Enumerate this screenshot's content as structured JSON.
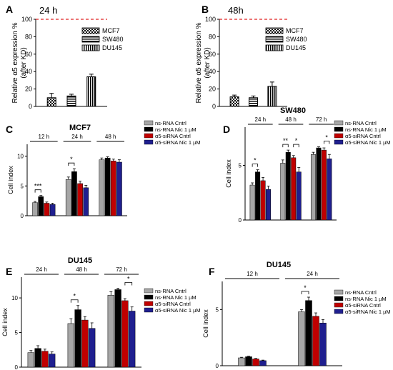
{
  "patterns": {
    "MCF7": "checker",
    "SW480": "hstripe",
    "DU145": "vstripe"
  },
  "colors": {
    "grey": "#a6a6a6",
    "black": "#000000",
    "red": "#c00000",
    "blue": "#1f1f8f",
    "ref_line": "#e02020"
  },
  "chart_data": [
    {
      "panel": "A",
      "type": "bar",
      "title": "24 h",
      "ylabel": "Relative α5 expression %\n(after KD)",
      "ylim": [
        0,
        100
      ],
      "yticks": [
        0,
        20,
        40,
        60,
        80,
        100
      ],
      "reference_line": 100,
      "categories": [
        "MCF7",
        "SW480",
        "DU145"
      ],
      "values": [
        10,
        12,
        34
      ],
      "errors": [
        5,
        2,
        3
      ],
      "legend": [
        "MCF7",
        "SW480",
        "DU145"
      ]
    },
    {
      "panel": "B",
      "type": "bar",
      "title": "48h",
      "ylabel": "Relative α5 expression %\n(after KD)",
      "ylim": [
        0,
        100
      ],
      "yticks": [
        0,
        20,
        40,
        60,
        80,
        100
      ],
      "reference_line": 100,
      "categories": [
        "MCF7",
        "SW480",
        "DU145"
      ],
      "values": [
        11,
        10,
        23
      ],
      "errors": [
        2,
        2,
        5
      ],
      "legend": [
        "MCF7",
        "SW480",
        "DU145"
      ]
    },
    {
      "panel": "C",
      "type": "bar",
      "title": "MCF7",
      "ylabel": "Cell index",
      "ylim": [
        0,
        12
      ],
      "yticks": [
        0,
        5,
        10
      ],
      "groups": [
        "12 h",
        "24 h",
        "48 h"
      ],
      "series": [
        {
          "name": "ns-RNA Cntrl",
          "values": [
            2.2,
            6.1,
            9.4
          ],
          "errors": [
            0.2,
            0.4,
            0.3
          ]
        },
        {
          "name": "ns-RNA Nic 1 µM",
          "values": [
            3.2,
            7.4,
            9.7
          ],
          "errors": [
            0.2,
            0.5,
            0.2
          ]
        },
        {
          "name": "α5-siRNA Cntrl",
          "values": [
            2.1,
            5.4,
            9.2
          ],
          "errors": [
            0.2,
            0.4,
            0.3
          ]
        },
        {
          "name": "α5-siRNA Nic 1 µM",
          "values": [
            1.9,
            4.7,
            9.0
          ],
          "errors": [
            0.2,
            0.4,
            0.4
          ]
        }
      ],
      "significance": [
        {
          "group": 0,
          "from": 0,
          "to": 1,
          "label": "***"
        },
        {
          "group": 1,
          "from": 0,
          "to": 1,
          "label": "*"
        }
      ]
    },
    {
      "panel": "D",
      "type": "bar",
      "title": "SW480",
      "ylabel": "Cell index",
      "ylim": [
        0,
        8.5
      ],
      "yticks": [
        0,
        5
      ],
      "groups": [
        "24 h",
        "48 h",
        "72 h"
      ],
      "series": [
        {
          "name": "ns-RNA Cntrl",
          "values": [
            3.2,
            5.2,
            6.0
          ],
          "errors": [
            0.2,
            0.3,
            0.2
          ]
        },
        {
          "name": "ns-RNA Nic 1 µM",
          "values": [
            4.4,
            6.2,
            6.6
          ],
          "errors": [
            0.2,
            0.2,
            0.1
          ]
        },
        {
          "name": "α5-siRNA Cntrl",
          "values": [
            3.6,
            5.7,
            6.4
          ],
          "errors": [
            0.3,
            0.2,
            0.2
          ]
        },
        {
          "name": "α5-siRNA Nic 1 µM",
          "values": [
            2.8,
            4.4,
            5.6
          ],
          "errors": [
            0.3,
            0.4,
            0.4
          ]
        }
      ],
      "significance": [
        {
          "group": 0,
          "from": 0,
          "to": 1,
          "label": "*"
        },
        {
          "group": 1,
          "from": 0,
          "to": 1,
          "label": "**"
        },
        {
          "group": 1,
          "from": 2,
          "to": 3,
          "label": "*"
        },
        {
          "group": 2,
          "from": 2,
          "to": 3,
          "label": "*"
        }
      ]
    },
    {
      "panel": "E",
      "type": "bar",
      "title": "DU145",
      "ylabel": "Cell index",
      "ylim": [
        0,
        13
      ],
      "yticks": [
        0,
        5,
        10
      ],
      "groups": [
        "24 h",
        "48 h",
        "72 h"
      ],
      "series": [
        {
          "name": "ns-RNA Cntrl",
          "values": [
            2.1,
            6.3,
            10.4
          ],
          "errors": [
            0.3,
            0.7,
            0.5
          ]
        },
        {
          "name": "ns-RNA Nic 1 µM",
          "values": [
            2.7,
            8.3,
            11.2
          ],
          "errors": [
            0.4,
            0.6,
            0.2
          ]
        },
        {
          "name": "α5-siRNA Cntrl",
          "values": [
            2.3,
            6.8,
            9.6
          ],
          "errors": [
            0.3,
            0.5,
            0.3
          ]
        },
        {
          "name": "α5-siRNA Nic 1 µM",
          "values": [
            1.9,
            5.6,
            8.1
          ],
          "errors": [
            0.3,
            0.8,
            0.6
          ]
        }
      ],
      "significance": [
        {
          "group": 1,
          "from": 0,
          "to": 1,
          "label": "*"
        },
        {
          "group": 2,
          "from": 2,
          "to": 3,
          "label": "*"
        }
      ]
    },
    {
      "panel": "F",
      "type": "bar",
      "title": "DU145",
      "ylabel": "Cell index",
      "ylim": [
        0,
        7.5
      ],
      "yticks": [
        0,
        5
      ],
      "groups": [
        "12 h",
        "24 h"
      ],
      "series": [
        {
          "name": "ns-RNA Cntrl",
          "values": [
            0.7,
            4.8
          ],
          "errors": [
            0.05,
            0.2
          ]
        },
        {
          "name": "ns-RNA Nic 1 µM",
          "values": [
            0.8,
            5.8
          ],
          "errors": [
            0.05,
            0.3
          ]
        },
        {
          "name": "α5-siRNA Cntrl",
          "values": [
            0.6,
            4.4
          ],
          "errors": [
            0.05,
            0.3
          ]
        },
        {
          "name": "α5-siRNA Nic 1 µM",
          "values": [
            0.45,
            3.8
          ],
          "errors": [
            0.05,
            0.3
          ]
        }
      ],
      "significance": [
        {
          "group": 1,
          "from": 0,
          "to": 1,
          "label": "*"
        }
      ]
    }
  ]
}
